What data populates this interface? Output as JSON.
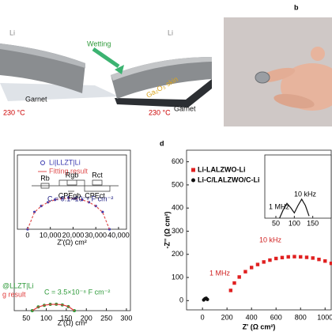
{
  "panel_a": {
    "left": {
      "metal": "Li",
      "substrate": "Garnet",
      "temperature": "230 °C"
    },
    "right": {
      "arrow": "Wetting",
      "metal": "Li",
      "skin": "Ga₂O₃ skin",
      "substrate": "Garnet",
      "temperature": "230 °C"
    }
  },
  "panel_b": {
    "label": "b"
  },
  "chart_data": [
    {
      "type": "scatter",
      "xlabel": "Z'(Ω) cm²",
      "xlim": [
        20,
        310
      ],
      "xticks": [
        50,
        100,
        150,
        200,
        250,
        300
      ],
      "ylim": [
        0,
        15000
      ],
      "annotation": "C = 3.5×10⁻⁸ F cm⁻²",
      "series": [
        {
          "name": "@LLZT|Li",
          "color": "#2e9a3a",
          "marker": "circle",
          "x": [
            65,
            80,
            95,
            110,
            125,
            140,
            155,
            170
          ],
          "values": [
            0,
            350,
            500,
            590,
            600,
            540,
            380,
            0
          ]
        },
        {
          "name": "g result",
          "color": "#e03a3a",
          "marker": "line",
          "x": [
            65,
            80,
            95,
            110,
            125,
            140,
            155,
            170
          ],
          "values": [
            0,
            340,
            510,
            585,
            595,
            545,
            390,
            0
          ]
        }
      ],
      "inset": {
        "type": "scatter",
        "xlabel": "Z'(Ω) cm²",
        "xlim": [
          -4500,
          43500
        ],
        "xticks": [
          0,
          {
            "value": 10000,
            "label": "10,000"
          },
          {
            "value": 20000,
            "label": "20,000"
          },
          {
            "value": 30000,
            "label": "30,000"
          },
          {
            "value": 40000,
            "label": "40,000"
          }
        ],
        "ylim": [
          0,
          25000
        ],
        "annotation": "C = 9.1×10⁻⁹ F cm⁻²",
        "circuit_labels": [
          "Rb",
          "Rgb",
          "CPEgb",
          "Rct",
          "CPEct"
        ],
        "series": [
          {
            "name": "Li|LLZT|Li",
            "color": "#3a3ab0",
            "marker": "circle",
            "x": [
              0,
              3000,
              6000,
              9000,
              12000,
              15000,
              18000,
              21000,
              24000,
              27000,
              30000,
              33000,
              36000
            ],
            "values": [
              0,
              5806,
              7825,
              9093,
              9899,
              10353,
              10500,
              10353,
              9899,
              9093,
              7825,
              5806,
              0
            ]
          },
          {
            "name": "Fitting result",
            "color": "#e05050",
            "marker": "line",
            "x": [
              0,
              3000,
              6000,
              9000,
              12000,
              15000,
              18000,
              21000,
              24000,
              27000,
              30000,
              33000,
              36000
            ],
            "values": [
              0,
              5700,
              7800,
              9100,
              9900,
              10300,
              10450,
              10300,
              9900,
              9100,
              7800,
              5700,
              0
            ]
          }
        ]
      }
    },
    {
      "type": "scatter",
      "label": "d",
      "xlabel": "Z' (Ω cm²)",
      "ylabel": "-Z'' (Ω cm²)",
      "xlim": [
        -130,
        1050
      ],
      "xticks": [
        0,
        200,
        400,
        600,
        800,
        1000
      ],
      "ylim": [
        -40,
        650
      ],
      "yticks": [
        0,
        100,
        200,
        300,
        400,
        500,
        600
      ],
      "annotations": [
        "1 MHz",
        "10 kHz"
      ],
      "series": [
        {
          "name": "Li-LALZWO-Li",
          "color": "#e02020",
          "marker": "square",
          "x": [
            230,
            260,
            300,
            350,
            400,
            450,
            500,
            550,
            600,
            650,
            700,
            750,
            800,
            850,
            900,
            950,
            1000,
            1050
          ],
          "values": [
            44,
            76,
            102,
            125,
            143,
            156,
            167,
            175,
            182,
            186,
            189,
            190,
            189,
            187,
            184,
            178,
            171,
            161
          ]
        },
        {
          "name": "Li-C/LALZWO/C-Li",
          "color": "#111111",
          "marker": "circle",
          "x": [
            10,
            20,
            30,
            40
          ],
          "values": [
            3,
            8,
            10,
            5
          ]
        }
      ],
      "inset": {
        "type": "line",
        "xlim": [
          20,
          200
        ],
        "xticks": [
          50,
          100,
          150
        ],
        "ylim": [
          0,
          60
        ],
        "annotations": [
          "1 MHz",
          "10 kHz"
        ],
        "series": [
          {
            "color": "#111111",
            "marker": "line",
            "x": [
              60,
              70,
              80,
              90,
              100,
              110,
              120,
              130,
              140
            ],
            "values": [
              0,
              8,
              14,
              10,
              5,
              12,
              18,
              12,
              2
            ]
          }
        ]
      }
    }
  ]
}
